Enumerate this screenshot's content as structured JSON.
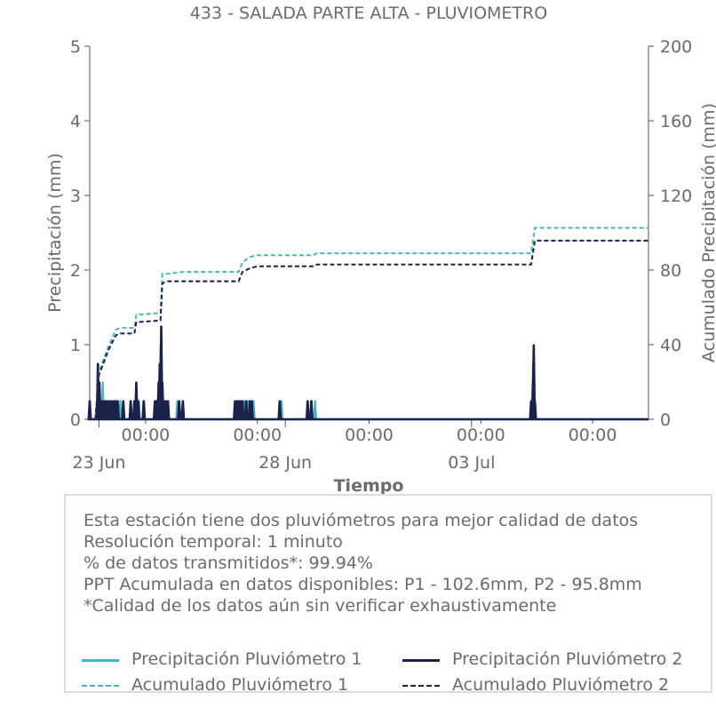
{
  "chart_data": {
    "type": "line",
    "title": "433 - SALADA PARTE ALTA - PLUVIOMETRO",
    "xlabel": "Tiempo",
    "ylabel": "Precipitación (mm)",
    "ylabel_right": "Acumulado Precipitación (mm)",
    "ylim": [
      0,
      5
    ],
    "ylim_right": [
      0,
      200
    ],
    "yticks": [
      "0",
      "1",
      "2",
      "3",
      "4",
      "5"
    ],
    "yticks_right": [
      "0",
      "40",
      "80",
      "120",
      "160",
      "200"
    ],
    "x_ticks_time": [
      "00:00",
      "00:00",
      "00:00",
      "00:00",
      "00:00"
    ],
    "x_ticks_date": [
      "23 Jun",
      "28 Jun",
      "03 Jul"
    ],
    "x_range_days": [
      0,
      15
    ],
    "grid": false,
    "colors": {
      "p1": "#4ab3c4",
      "p2": "#1c2149"
    },
    "series": [
      {
        "name": "Precipitación Pluviómetro 1",
        "style": "solid",
        "axis": "left",
        "x": [
          0.25,
          0.35,
          0.42,
          0.5,
          0.55,
          0.62,
          0.7,
          0.82,
          1.2,
          1.28,
          1.32,
          1.45,
          1.8,
          1.9,
          2.1,
          2.35,
          2.5,
          3.95,
          4.05,
          4.15,
          4.25,
          4.4,
          5.15,
          5.95,
          6.05,
          11.9,
          11.95
        ],
        "values": [
          0.25,
          0.5,
          0.25,
          0.25,
          0.25,
          0.25,
          0.25,
          0.25,
          0.25,
          0.25,
          0.25,
          0.25,
          0.25,
          1.0,
          0.25,
          0.25,
          0.25,
          0.25,
          0.25,
          0.25,
          0.25,
          0.25,
          0.25,
          0.25,
          0.25,
          0.75,
          0.25
        ]
      },
      {
        "name": "Precipitación Pluviómetro 2",
        "style": "solid",
        "axis": "left",
        "x": [
          0,
          0.2,
          0.22,
          0.26,
          0.3,
          0.35,
          0.4,
          0.45,
          0.5,
          0.55,
          0.6,
          0.65,
          0.7,
          0.75,
          0.9,
          1.1,
          1.2,
          1.25,
          1.3,
          1.45,
          1.75,
          1.8,
          1.85,
          1.88,
          1.92,
          1.95,
          2.0,
          2.05,
          2.1,
          2.4,
          2.5,
          3.9,
          3.95,
          4.0,
          4.05,
          4.1,
          4.2,
          4.3,
          4.35,
          5.1,
          5.85,
          5.95,
          11.85,
          11.9,
          11.92,
          11.95
        ],
        "values": [
          0.25,
          0.25,
          0.75,
          0.5,
          0.25,
          0.25,
          0.25,
          0.25,
          0.25,
          0.25,
          0.25,
          0.25,
          0.25,
          0.25,
          0.25,
          0.25,
          0.25,
          0.5,
          0.25,
          0.25,
          0.25,
          0.25,
          0.5,
          0.75,
          1.25,
          0.5,
          0.25,
          0.25,
          0.25,
          0.25,
          0.25,
          0.25,
          0.25,
          0.25,
          0.25,
          0.25,
          0.25,
          0.25,
          0.25,
          0.25,
          0.25,
          0.25,
          0.25,
          0.5,
          1.0,
          0.25
        ]
      },
      {
        "name": "Acumulado Pluviómetro 1",
        "style": "dashed",
        "axis": "right",
        "x": [
          0.15,
          0.25,
          0.35,
          0.5,
          0.7,
          0.82,
          1.2,
          1.25,
          1.9,
          1.95,
          2.1,
          2.5,
          4.0,
          4.1,
          4.3,
          4.5,
          6.0,
          6.1,
          11.85,
          11.95,
          15
        ],
        "values": [
          0,
          25,
          31,
          39,
          48,
          49,
          49,
          56,
          57,
          78,
          78,
          79,
          79,
          84,
          87,
          88,
          88,
          89,
          89,
          102.6,
          102.6
        ]
      },
      {
        "name": "Acumulado Pluviómetro 2",
        "style": "dashed",
        "axis": "right",
        "x": [
          0.15,
          0.25,
          0.35,
          0.5,
          0.7,
          0.82,
          1.2,
          1.25,
          1.9,
          1.95,
          2.1,
          2.5,
          4.0,
          4.1,
          4.3,
          4.5,
          6.0,
          6.1,
          11.85,
          11.95,
          15
        ],
        "values": [
          0,
          24,
          29,
          37,
          45,
          46,
          46,
          52,
          53,
          73,
          74,
          74,
          74,
          79,
          81,
          82,
          82,
          83,
          83,
          95.8,
          95.8
        ]
      }
    ]
  },
  "info": {
    "line1": "Esta estación tiene dos pluviómetros para mejor calidad de datos",
    "line2": "Resolución temporal: 1 minuto",
    "line3": "% de datos transmitidos*: 99.94%",
    "line4": "PPT Acumulada en datos disponibles: P1 - 102.6mm, P2 - 95.8mm",
    "line5": "*Calidad de los datos aún sin verificar exhaustivamente"
  },
  "legend": {
    "p1": "Precipitación Pluviómetro 1",
    "p2": "Precipitación Pluviómetro 2",
    "a1": "Acumulado Pluviómetro 1",
    "a2": "Acumulado Pluviómetro 2"
  }
}
